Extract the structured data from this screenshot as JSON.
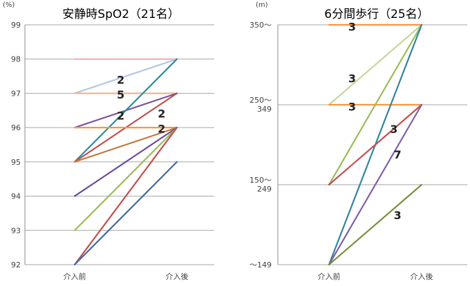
{
  "chart_data": [
    {
      "type": "line",
      "title": "安静時SpO2（21名）",
      "unit_label": "(%)",
      "categories": [
        "介入前",
        "介入後"
      ],
      "y_ticks": [
        "92",
        "93",
        "94",
        "95",
        "96",
        "97",
        "98",
        "99"
      ],
      "ylim": [
        92,
        99
      ],
      "grid": true,
      "series": [
        {
          "values": [
            98,
            98
          ],
          "color": "#f4b0b0"
        },
        {
          "values": [
            97,
            98
          ],
          "color": "#b4c7e7"
        },
        {
          "values": [
            97,
            97
          ],
          "color": "#f4b183"
        },
        {
          "values": [
            96,
            97
          ],
          "color": "#7e4f9e"
        },
        {
          "values": [
            95,
            98
          ],
          "color": "#2e8b9a"
        },
        {
          "values": [
            95,
            97
          ],
          "color": "#c0504d"
        },
        {
          "values": [
            96,
            96
          ],
          "color": "#f79646"
        },
        {
          "values": [
            95,
            96
          ],
          "color": "#c0783c"
        },
        {
          "values": [
            94,
            96
          ],
          "color": "#6b4c9a"
        },
        {
          "values": [
            93,
            96
          ],
          "color": "#9bbb59"
        },
        {
          "values": [
            92,
            96
          ],
          "color": "#c0504d"
        },
        {
          "values": [
            92,
            95
          ],
          "color": "#4169a8"
        }
      ],
      "annotations": [
        {
          "text": "2",
          "x": 0.45,
          "y": 97.4
        },
        {
          "text": "5",
          "x": 0.45,
          "y": 96.97
        },
        {
          "text": "2",
          "x": 0.45,
          "y": 96.35
        },
        {
          "text": "2",
          "x": 0.85,
          "y": 96.42
        },
        {
          "text": "2",
          "x": 0.85,
          "y": 95.97
        }
      ]
    },
    {
      "type": "line",
      "title": "6分間歩行（25名）",
      "unit_label": "(m)",
      "categories": [
        "介入前",
        "介入後"
      ],
      "y_ticks": [
        "～149",
        "150～\n249",
        "250～\n349",
        "350～"
      ],
      "ylim": [
        0,
        3
      ],
      "grid": true,
      "series": [
        {
          "values": [
            3,
            3
          ],
          "color": "#f79646"
        },
        {
          "values": [
            2,
            3
          ],
          "color": "#c4d79b"
        },
        {
          "values": [
            2,
            2
          ],
          "color": "#f79646"
        },
        {
          "values": [
            1,
            3
          ],
          "color": "#9bbb59"
        },
        {
          "values": [
            0,
            3
          ],
          "color": "#31859c"
        },
        {
          "values": [
            1,
            2
          ],
          "color": "#c0504d"
        },
        {
          "values": [
            0,
            2
          ],
          "color": "#7f5fa8"
        },
        {
          "values": [
            0,
            1
          ],
          "color": "#76923c"
        }
      ],
      "annotations": [
        {
          "text": "3",
          "x": 0.25,
          "y": 2.98
        },
        {
          "text": "3",
          "x": 0.25,
          "y": 2.33
        },
        {
          "text": "3",
          "x": 0.25,
          "y": 1.98
        },
        {
          "text": "3",
          "x": 0.7,
          "y": 1.7
        },
        {
          "text": "7",
          "x": 0.74,
          "y": 1.38
        },
        {
          "text": "3",
          "x": 0.74,
          "y": 0.62
        }
      ]
    }
  ]
}
